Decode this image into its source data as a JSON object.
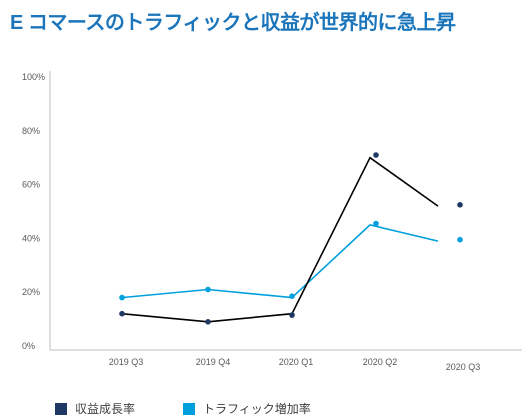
{
  "title": "E コマースのトラフィックと収益が世界的に急上昇",
  "colors": {
    "title": "#1b75bb",
    "axis": "#bfbfbf",
    "text": "#595959"
  },
  "chart_data": {
    "type": "line",
    "title": "E コマースのトラフィックと収益が世界的に急上昇",
    "categories": [
      "2019 Q3",
      "2019 Q4",
      "2020 Q1",
      "2020 Q2",
      "2020 Q3"
    ],
    "y_ticks": [
      "0%",
      "20%",
      "40%",
      "60%",
      "80%",
      "100%"
    ],
    "ylim": [
      0,
      100
    ],
    "grid": false,
    "legend": "bottom-left",
    "series": [
      {
        "name": "収益成長率",
        "color": "#1f3864",
        "line_color": "#000000",
        "values": [
          12,
          9,
          12,
          70,
          52
        ],
        "points": [
          12,
          9,
          11.5,
          71,
          52.5
        ]
      },
      {
        "name": "トラフィック増加率",
        "color": "#00a0dc",
        "line_color": "#00a0dc",
        "values": [
          18,
          21,
          18,
          45,
          39
        ],
        "points": [
          18,
          21,
          18.5,
          45.5,
          39.5
        ]
      }
    ]
  }
}
